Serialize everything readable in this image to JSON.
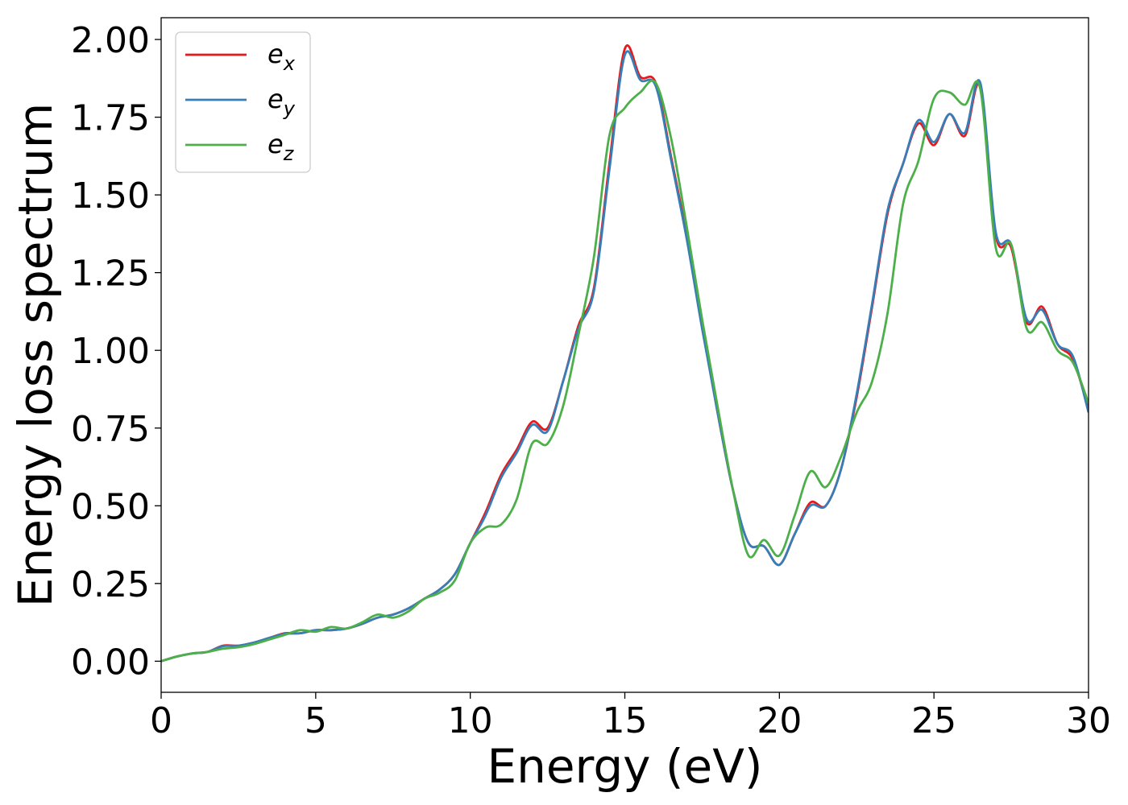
{
  "chart_data": {
    "type": "line",
    "title": "",
    "xlabel": "Energy (eV)",
    "ylabel": "Energy loss spectrum",
    "xlim": [
      0,
      30
    ],
    "ylim": [
      -0.1,
      2.07
    ],
    "xticks": [
      0,
      5,
      10,
      15,
      20,
      25,
      30
    ],
    "xtick_labels": [
      "0",
      "5",
      "10",
      "15",
      "20",
      "25",
      "30"
    ],
    "yticks": [
      0,
      0.25,
      0.5,
      0.75,
      1.0,
      1.25,
      1.5,
      1.75,
      2.0
    ],
    "ytick_labels": [
      "0.00",
      "0.25",
      "0.50",
      "0.75",
      "1.00",
      "1.25",
      "1.50",
      "1.75",
      "2.00"
    ],
    "grid": false,
    "legend_position": "top-left",
    "series": [
      {
        "name": "e_x",
        "label_base": "e",
        "label_sub": "x",
        "color": "#e41a1c",
        "x": [
          0,
          0.5,
          1,
          1.5,
          2,
          2.5,
          3,
          3.5,
          4,
          4.5,
          5,
          5.5,
          6,
          6.5,
          7,
          7.5,
          8,
          8.5,
          9,
          9.5,
          10,
          10.5,
          11,
          11.5,
          12,
          12.5,
          13,
          13.5,
          14,
          14.5,
          15,
          15.5,
          16,
          16.5,
          17,
          17.5,
          18,
          18.5,
          19,
          19.5,
          20,
          20.5,
          21,
          21.5,
          22,
          22.5,
          23,
          23.5,
          24,
          24.5,
          25,
          25.5,
          26,
          26.5,
          27,
          27.5,
          28,
          28.5,
          29,
          29.5,
          30
        ],
        "y": [
          0.0,
          0.015,
          0.025,
          0.03,
          0.05,
          0.05,
          0.06,
          0.075,
          0.09,
          0.09,
          0.1,
          0.1,
          0.105,
          0.12,
          0.14,
          0.15,
          0.17,
          0.2,
          0.23,
          0.28,
          0.38,
          0.48,
          0.6,
          0.68,
          0.77,
          0.75,
          0.9,
          1.08,
          1.2,
          1.6,
          1.97,
          1.88,
          1.86,
          1.62,
          1.37,
          1.08,
          0.8,
          0.55,
          0.38,
          0.37,
          0.31,
          0.41,
          0.51,
          0.5,
          0.62,
          0.85,
          1.14,
          1.44,
          1.6,
          1.73,
          1.66,
          1.76,
          1.69,
          1.85,
          1.37,
          1.33,
          1.09,
          1.14,
          1.02,
          0.97,
          0.81
        ]
      },
      {
        "name": "e_y",
        "label_base": "e",
        "label_sub": "y",
        "color": "#377eb8",
        "x": [
          0,
          0.5,
          1,
          1.5,
          2,
          2.5,
          3,
          3.5,
          4,
          4.5,
          5,
          5.5,
          6,
          6.5,
          7,
          7.5,
          8,
          8.5,
          9,
          9.5,
          10,
          10.5,
          11,
          11.5,
          12,
          12.5,
          13,
          13.5,
          14,
          14.5,
          15,
          15.5,
          16,
          16.5,
          17,
          17.5,
          18,
          18.5,
          19,
          19.5,
          20,
          20.5,
          21,
          21.5,
          22,
          22.5,
          23,
          23.5,
          24,
          24.5,
          25,
          25.5,
          26,
          26.5,
          27,
          27.5,
          28,
          28.5,
          29,
          29.5,
          30
        ],
        "y": [
          0.0,
          0.015,
          0.025,
          0.03,
          0.048,
          0.05,
          0.06,
          0.075,
          0.088,
          0.09,
          0.1,
          0.1,
          0.105,
          0.12,
          0.14,
          0.15,
          0.17,
          0.2,
          0.23,
          0.28,
          0.38,
          0.47,
          0.59,
          0.67,
          0.76,
          0.74,
          0.9,
          1.07,
          1.19,
          1.58,
          1.95,
          1.87,
          1.85,
          1.61,
          1.36,
          1.07,
          0.8,
          0.55,
          0.38,
          0.37,
          0.31,
          0.41,
          0.5,
          0.5,
          0.62,
          0.86,
          1.15,
          1.45,
          1.6,
          1.74,
          1.67,
          1.76,
          1.7,
          1.86,
          1.38,
          1.34,
          1.1,
          1.13,
          1.02,
          0.98,
          0.8
        ]
      },
      {
        "name": "e_z",
        "label_base": "e",
        "label_sub": "z",
        "color": "#4daf4a",
        "x": [
          0,
          0.5,
          1,
          1.5,
          2,
          2.5,
          3,
          3.5,
          4,
          4.5,
          5,
          5.5,
          6,
          6.5,
          7,
          7.5,
          8,
          8.5,
          9,
          9.5,
          10,
          10.5,
          11,
          11.5,
          12,
          12.5,
          13,
          13.5,
          14,
          14.5,
          15,
          15.5,
          16,
          16.5,
          17,
          17.5,
          18,
          18.5,
          19,
          19.5,
          20,
          20.5,
          21,
          21.5,
          22,
          22.5,
          23,
          23.5,
          24,
          24.5,
          25,
          25.5,
          26,
          26.5,
          27,
          27.5,
          28,
          28.5,
          29,
          29.5,
          30
        ],
        "y": [
          0.0,
          0.015,
          0.025,
          0.03,
          0.04,
          0.045,
          0.055,
          0.07,
          0.085,
          0.1,
          0.095,
          0.11,
          0.105,
          0.125,
          0.15,
          0.14,
          0.16,
          0.2,
          0.22,
          0.26,
          0.38,
          0.43,
          0.44,
          0.52,
          0.7,
          0.7,
          0.82,
          1.05,
          1.3,
          1.69,
          1.78,
          1.83,
          1.86,
          1.68,
          1.4,
          1.1,
          0.82,
          0.55,
          0.34,
          0.39,
          0.34,
          0.47,
          0.61,
          0.56,
          0.66,
          0.8,
          0.9,
          1.12,
          1.47,
          1.61,
          1.81,
          1.83,
          1.79,
          1.84,
          1.33,
          1.34,
          1.07,
          1.09,
          1.0,
          0.96,
          0.83
        ]
      }
    ]
  }
}
